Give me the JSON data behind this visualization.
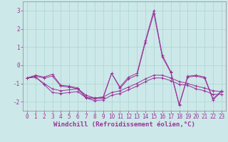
{
  "xlabel": "Windchill (Refroidissement éolien,°C)",
  "x": [
    0,
    1,
    2,
    3,
    4,
    5,
    6,
    7,
    8,
    9,
    10,
    11,
    12,
    13,
    14,
    15,
    16,
    17,
    18,
    19,
    20,
    21,
    22,
    23
  ],
  "lines": [
    [
      -0.7,
      -0.55,
      -0.65,
      -0.5,
      -1.1,
      -1.15,
      -1.25,
      -1.75,
      -1.8,
      -1.75,
      -0.45,
      -1.2,
      -0.65,
      -0.45,
      1.35,
      3.0,
      0.55,
      -0.35,
      -2.15,
      -0.6,
      -0.55,
      -0.65,
      -1.85,
      -1.4
    ],
    [
      -0.7,
      -0.6,
      -0.7,
      -0.6,
      -1.15,
      -1.2,
      -1.3,
      -1.8,
      -1.85,
      -1.8,
      -0.45,
      -1.25,
      -0.75,
      -0.55,
      1.25,
      2.85,
      0.45,
      -0.4,
      -2.2,
      -0.65,
      -0.6,
      -0.7,
      -1.9,
      -1.45
    ],
    [
      -0.7,
      -0.65,
      -1.0,
      -1.3,
      -1.4,
      -1.35,
      -1.3,
      -1.65,
      -1.8,
      -1.75,
      -1.5,
      -1.4,
      -1.2,
      -1.0,
      -0.75,
      -0.55,
      -0.55,
      -0.7,
      -0.9,
      -1.0,
      -1.15,
      -1.25,
      -1.4,
      -1.45
    ],
    [
      -0.7,
      -0.65,
      -1.05,
      -1.5,
      -1.55,
      -1.5,
      -1.45,
      -1.8,
      -1.95,
      -1.9,
      -1.65,
      -1.55,
      -1.35,
      -1.15,
      -0.9,
      -0.7,
      -0.7,
      -0.85,
      -1.05,
      -1.1,
      -1.3,
      -1.4,
      -1.6,
      -1.6
    ]
  ],
  "ylim": [
    -2.5,
    3.5
  ],
  "yticks": [
    -2,
    -1,
    0,
    1,
    2,
    3
  ],
  "xticks": [
    0,
    1,
    2,
    3,
    4,
    5,
    6,
    7,
    8,
    9,
    10,
    11,
    12,
    13,
    14,
    15,
    16,
    17,
    18,
    19,
    20,
    21,
    22,
    23
  ],
  "bg_color": "#cce8e8",
  "grid_color": "#aad4d4",
  "line_color": "#993399",
  "xlabel_fontsize": 6.5,
  "tick_fontsize": 5.5
}
